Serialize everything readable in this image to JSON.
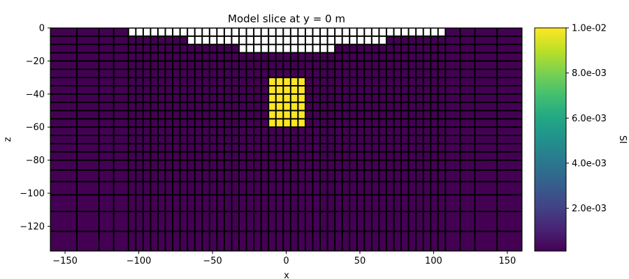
{
  "chart_data": {
    "type": "heatmap",
    "title": "Model slice at y = 0 m",
    "xlabel": "x",
    "ylabel": "z",
    "xlim": [
      -160,
      160
    ],
    "ylim": [
      -135,
      0
    ],
    "xticks": [
      -150,
      -100,
      -50,
      0,
      50,
      100,
      150
    ],
    "xtick_labels": [
      "−150",
      "−100",
      "−50",
      "0",
      "50",
      "100",
      "150"
    ],
    "yticks": [
      0,
      -20,
      -40,
      -60,
      -80,
      -100,
      -120
    ],
    "ytick_labels": [
      "0",
      "−20",
      "−40",
      "−60",
      "−80",
      "−100",
      "−120"
    ],
    "x_edges": [
      -160,
      -142,
      -127,
      -117,
      -107,
      -102,
      -97,
      -92,
      -87,
      -82,
      -77,
      -72,
      -67,
      -62,
      -57,
      -52,
      -47,
      -42,
      -37,
      -32,
      -27,
      -22,
      -17,
      -12,
      -7,
      -2,
      3,
      8,
      13,
      18,
      23,
      28,
      33,
      38,
      43,
      48,
      53,
      58,
      63,
      68,
      73,
      78,
      83,
      88,
      93,
      98,
      103,
      108,
      118,
      128,
      143,
      160
    ],
    "z_edges": [
      0,
      -5,
      -10,
      -15,
      -20,
      -25,
      -30,
      -35,
      -40,
      -45,
      -50,
      -55,
      -60,
      -65,
      -70,
      -75,
      -80,
      -86,
      -93,
      -101,
      -111,
      -123,
      -135
    ],
    "background_value": 0.0001,
    "anomaly": {
      "value": 0.01,
      "x_range": [
        -12,
        13
      ],
      "z_range": [
        -30,
        -60
      ]
    },
    "air_cells_inactive": [
      {
        "z_range": [
          0,
          -5
        ],
        "x_range": [
          -107,
          108
        ]
      },
      {
        "z_range": [
          -5,
          -10
        ],
        "x_range": [
          -67,
          68
        ]
      },
      {
        "z_range": [
          -10,
          -15
        ],
        "x_range": [
          -32,
          33
        ]
      }
    ],
    "colorscale": "viridis",
    "colorbar": {
      "label": "SI",
      "vmin": 0.0001,
      "vmax": 0.01,
      "ticks": [
        0.002,
        0.004,
        0.006,
        0.008,
        0.01
      ],
      "tick_labels": [
        "2.0e-03",
        "4.0e-03",
        "6.0e-03",
        "8.0e-03",
        "1.0e-02"
      ]
    }
  }
}
